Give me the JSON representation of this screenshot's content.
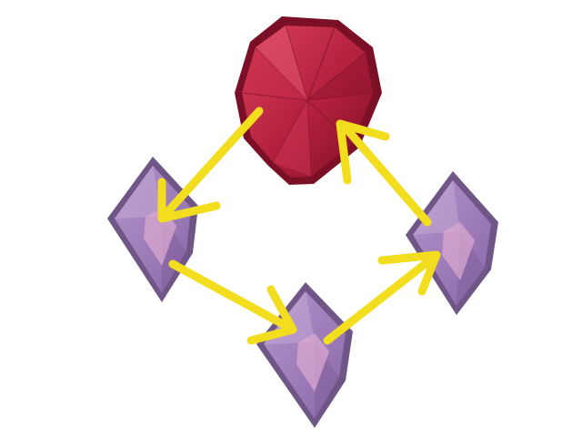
{
  "diagram": {
    "nodes": [
      {
        "id": "ruby",
        "kind": "ruby-gem",
        "color": "#b8243f"
      },
      {
        "id": "left",
        "kind": "purple-crystal",
        "color": "#9a78b4"
      },
      {
        "id": "bottom",
        "kind": "purple-crystal",
        "color": "#9a78b4"
      },
      {
        "id": "right",
        "kind": "purple-crystal",
        "color": "#9a78b4"
      }
    ],
    "edges": [
      {
        "from": "ruby",
        "to": "left"
      },
      {
        "from": "left",
        "to": "bottom"
      },
      {
        "from": "bottom",
        "to": "right"
      },
      {
        "from": "right",
        "to": "ruby"
      }
    ],
    "arrow_color": "#f2dd1e",
    "background": "#ffffff"
  }
}
